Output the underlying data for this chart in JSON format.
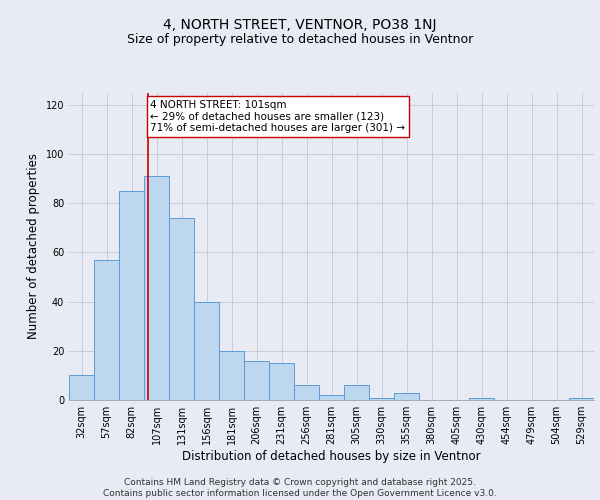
{
  "title": "4, NORTH STREET, VENTNOR, PO38 1NJ",
  "subtitle": "Size of property relative to detached houses in Ventnor",
  "xlabel": "Distribution of detached houses by size in Ventnor",
  "ylabel": "Number of detached properties",
  "categories": [
    "32sqm",
    "57sqm",
    "82sqm",
    "107sqm",
    "131sqm",
    "156sqm",
    "181sqm",
    "206sqm",
    "231sqm",
    "256sqm",
    "281sqm",
    "305sqm",
    "330sqm",
    "355sqm",
    "380sqm",
    "405sqm",
    "430sqm",
    "454sqm",
    "479sqm",
    "504sqm",
    "529sqm"
  ],
  "values": [
    10,
    57,
    85,
    91,
    74,
    40,
    20,
    16,
    15,
    6,
    2,
    6,
    1,
    3,
    0,
    0,
    1,
    0,
    0,
    0,
    1
  ],
  "bar_color": "#bdd7ee",
  "bar_edge_color": "#5b9bd5",
  "grid_color": "#c8ccd8",
  "background_color": "#e8eaf4",
  "vline_x": 2.67,
  "vline_color": "#cc0000",
  "annotation_text": "4 NORTH STREET: 101sqm\n← 29% of detached houses are smaller (123)\n71% of semi-detached houses are larger (301) →",
  "annotation_box_facecolor": "#ffffff",
  "annotation_box_edgecolor": "#cc0000",
  "ylim": [
    0,
    125
  ],
  "yticks": [
    0,
    20,
    40,
    60,
    80,
    100,
    120
  ],
  "footer_line1": "Contains HM Land Registry data © Crown copyright and database right 2025.",
  "footer_line2": "Contains public sector information licensed under the Open Government Licence v3.0.",
  "title_fontsize": 10,
  "subtitle_fontsize": 9,
  "axis_label_fontsize": 8.5,
  "tick_fontsize": 7,
  "annotation_fontsize": 7.5,
  "footer_fontsize": 6.5
}
